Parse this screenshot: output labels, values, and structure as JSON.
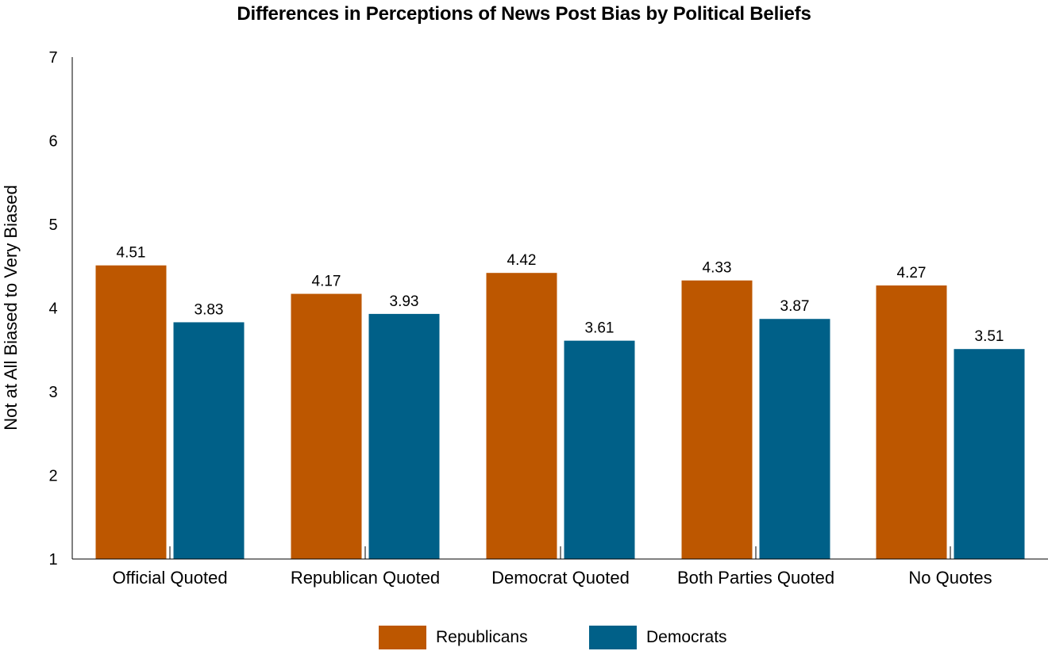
{
  "chart_data": {
    "type": "bar",
    "title": "Differences in Perceptions of News Post Bias by Political Beliefs",
    "ylabel": "Not at All Biased to Very Biased",
    "xlabel": "",
    "ylim": [
      1,
      7
    ],
    "yticks": [
      1,
      2,
      3,
      4,
      5,
      6,
      7
    ],
    "categories": [
      "Official Quoted",
      "Republican Quoted",
      "Democrat Quoted",
      "Both Parties Quoted",
      "No Quotes"
    ],
    "series": [
      {
        "name": "Republicans",
        "color": "#bd5700",
        "values": [
          4.51,
          4.17,
          4.42,
          4.33,
          4.27
        ],
        "labels": [
          "4.51",
          "4.17",
          "4.42",
          "4.33",
          "4.27"
        ]
      },
      {
        "name": "Democrats",
        "color": "#006088",
        "values": [
          3.83,
          3.93,
          3.61,
          3.87,
          3.51
        ],
        "labels": [
          "3.83",
          "3.93",
          "3.61",
          "3.87",
          "3.51"
        ]
      }
    ],
    "legend_position": "bottom-center",
    "grid": false
  }
}
